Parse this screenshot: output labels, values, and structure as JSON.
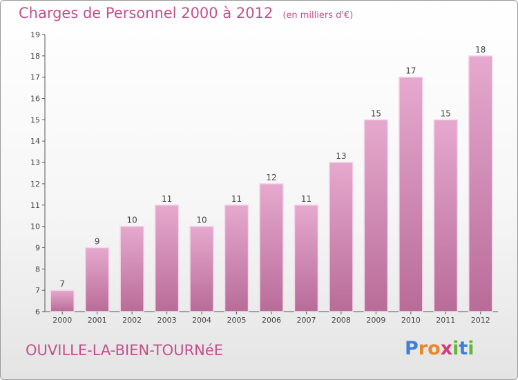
{
  "header": {
    "title": "Charges de Personnel 2000 à 2012",
    "unit": "(en milliers d'€)"
  },
  "footer": {
    "commune": "OUVILLE-LA-BIEN-TOURNéE",
    "logo_letters": [
      "P",
      "r",
      "o",
      "x",
      "i",
      "t",
      "i"
    ],
    "logo_colors": [
      "#3f7fd6",
      "#e8882b",
      "#e8882b",
      "#d23a7a",
      "#62b53a",
      "#3f7fd6",
      "#62b53a"
    ]
  },
  "colors": {
    "bar_fill_top": "#e6a9ce",
    "bar_fill_bottom": "#b86c98",
    "bar_stroke": "#f5d6e8",
    "text_accent": "#c2508c",
    "axis": "#555555"
  },
  "chart_data": {
    "type": "bar",
    "title": "Charges de Personnel 2000 à 2012",
    "subtitle": "(en milliers d'€)",
    "categories": [
      "2000",
      "2001",
      "2002",
      "2003",
      "2004",
      "2005",
      "2006",
      "2007",
      "2008",
      "2009",
      "2010",
      "2011",
      "2012"
    ],
    "values": [
      7,
      9,
      10,
      11,
      10,
      11,
      12,
      11,
      13,
      15,
      17,
      15,
      18
    ],
    "ylim": [
      6,
      19
    ],
    "yticks": [
      6,
      7,
      8,
      9,
      10,
      11,
      12,
      13,
      14,
      15,
      16,
      17,
      18,
      19
    ],
    "grid": false,
    "data_labels": true
  }
}
